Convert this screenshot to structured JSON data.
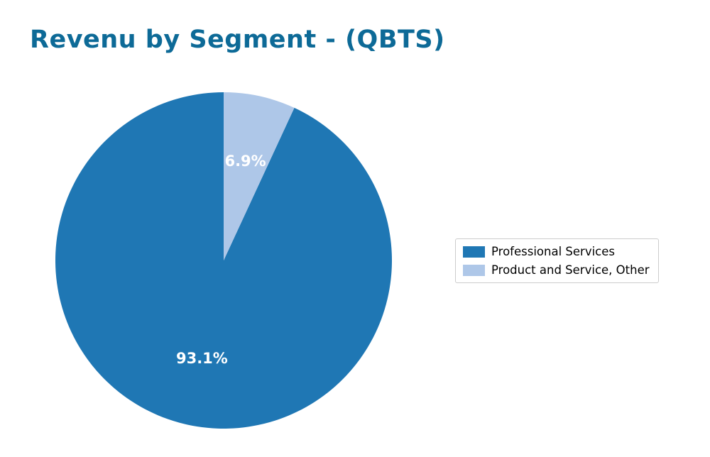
{
  "title": "Revenu by Segment - (QBTS)",
  "colors": {
    "title_text": "#0d6a97",
    "pie_label_text": "#ffffff",
    "legend_border": "#cccccc",
    "background": "#ffffff"
  },
  "chart_data": {
    "type": "pie",
    "title": "Revenu by Segment - (QBTS)",
    "labels": [
      "Professional Services",
      "Product and Service, Other"
    ],
    "values": [
      93.1,
      6.9
    ],
    "value_labels": [
      "93.1%",
      "6.9%"
    ],
    "slice_colors": [
      "#1f77b4",
      "#aec7e8"
    ],
    "start_angle": 90,
    "counterclock": true,
    "label_radius_fraction": 0.6,
    "legend_position": "center right",
    "legend_entries": [
      {
        "label": "Professional Services",
        "color": "#1f77b4"
      },
      {
        "label": "Product and Service, Other",
        "color": "#aec7e8"
      }
    ]
  }
}
